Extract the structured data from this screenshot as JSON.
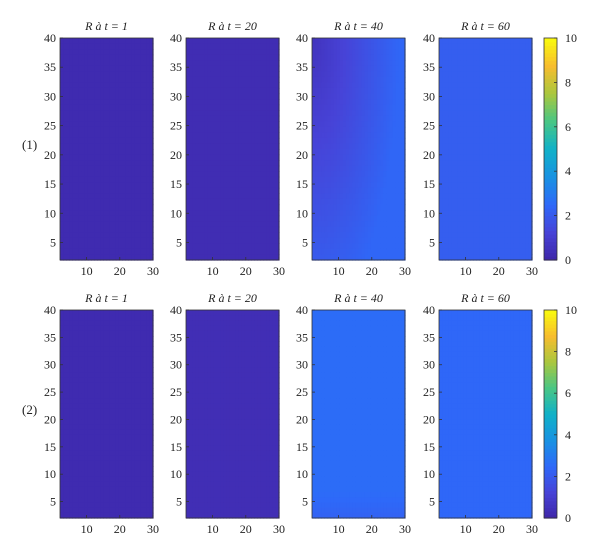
{
  "colors": {
    "colormap": [
      "#3e26a8",
      "#4743d7",
      "#2e69f9",
      "#1992e2",
      "#10b1c8",
      "#48c685",
      "#a9c73e",
      "#f7bd2e",
      "#f9fb0e"
    ],
    "axis_color": "#333333",
    "background": "#ffffff"
  },
  "row_labels": [
    "(1)",
    "(2)"
  ],
  "chart_data": [
    {
      "type": "heatmap",
      "row_label": "(1)",
      "colorbar": {
        "range": [
          0,
          10
        ],
        "ticks": [
          0,
          2,
          4,
          6,
          8,
          10
        ]
      },
      "panels": [
        {
          "title": "R à t = 1",
          "field": "uniform",
          "base": 0.2
        },
        {
          "title": "R à t = 20",
          "field": "uniform",
          "base": 0.3
        },
        {
          "title": "R à t = 40",
          "field": "radial_low_corner",
          "min": 0.6,
          "max": 2.4
        },
        {
          "title": "R à t = 60",
          "field": "uniform",
          "base": 2.15
        }
      ]
    },
    {
      "type": "heatmap",
      "row_label": "(2)",
      "colorbar": {
        "range": [
          0,
          10
        ],
        "ticks": [
          0,
          2,
          4,
          6,
          8,
          10
        ]
      },
      "panels": [
        {
          "title": "R à t = 1",
          "field": "uniform",
          "base": 0.2
        },
        {
          "title": "R à t = 20",
          "field": "uniform",
          "base": 0.35
        },
        {
          "title": "R à t = 40",
          "field": "uniform_top",
          "base": 2.6,
          "top": 2.3
        },
        {
          "title": "R à t = 60",
          "field": "uniform",
          "base": 2.45
        }
      ]
    }
  ],
  "axes": {
    "x_ticks": [
      10,
      20,
      30
    ],
    "y_ticks": [
      5,
      10,
      15,
      20,
      25,
      30,
      35,
      40
    ],
    "xlim": [
      2,
      30
    ],
    "ylim": [
      2,
      40
    ]
  }
}
